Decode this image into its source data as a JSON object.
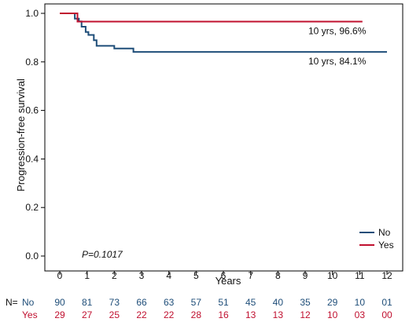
{
  "chart_data": {
    "type": "line",
    "xlabel": "Years",
    "ylabel": "Progression-free survival",
    "xlim": [
      0,
      12
    ],
    "ylim": [
      0,
      1
    ],
    "x_ticks": [
      0,
      1,
      2,
      3,
      4,
      5,
      6,
      7,
      8,
      9,
      10,
      11,
      12
    ],
    "y_ticks": [
      "0.0",
      "0.2",
      "0.4",
      "0.6",
      "0.8",
      "1.0"
    ],
    "grid": false,
    "legend_position": "bottom-right",
    "p_value": {
      "prefix": "P",
      "value": "=0.1017"
    },
    "series": [
      {
        "name": "No",
        "color": "#1f4e79",
        "end_label": "10 yrs, 84.1%",
        "steps": [
          [
            0,
            1.0
          ],
          [
            0.55,
            0.978
          ],
          [
            0.7,
            0.967
          ],
          [
            0.8,
            0.945
          ],
          [
            0.95,
            0.923
          ],
          [
            1.05,
            0.911
          ],
          [
            1.25,
            0.889
          ],
          [
            1.35,
            0.866
          ],
          [
            2.0,
            0.855
          ],
          [
            2.7,
            0.841
          ],
          [
            12,
            0.841
          ]
        ]
      },
      {
        "name": "Yes",
        "color": "#c0102f",
        "end_label": "10 yrs, 96.6%",
        "steps": [
          [
            0,
            1.0
          ],
          [
            0.65,
            0.966
          ],
          [
            11.1,
            0.966
          ]
        ]
      }
    ],
    "risk_table": {
      "prefix": "N=",
      "rows": [
        {
          "label": "No",
          "color": "#1f4e79",
          "values": [
            "90",
            "81",
            "73",
            "66",
            "63",
            "57",
            "51",
            "45",
            "40",
            "35",
            "29",
            "10",
            "01"
          ]
        },
        {
          "label": "Yes",
          "color": "#c0102f",
          "values": [
            "29",
            "27",
            "25",
            "22",
            "22",
            "28",
            "16",
            "13",
            "13",
            "12",
            "10",
            "03",
            "00"
          ]
        }
      ]
    }
  }
}
